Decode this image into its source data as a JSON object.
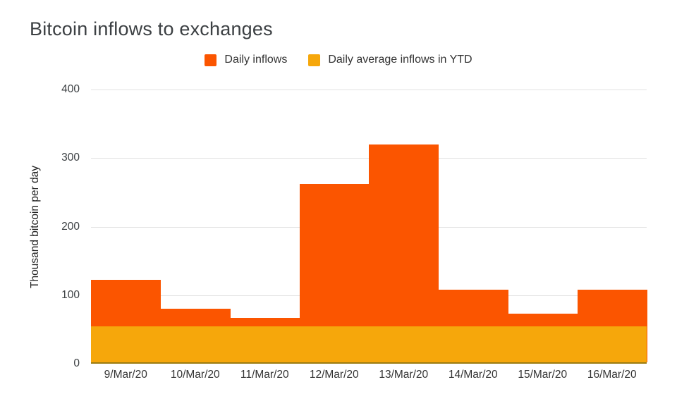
{
  "title": "Bitcoin inflows to exchanges",
  "legend": [
    {
      "label": "Daily inflows",
      "color": "#fb5500"
    },
    {
      "label": "Daily average inflows in YTD",
      "color": "#f6a70b"
    }
  ],
  "colors": {
    "daily_inflows": "#fb5500",
    "daily_average": "#f6a70b",
    "gridline": "#e2e2e2",
    "baseline": "#9c7c12",
    "title_text": "#3c4043"
  },
  "chart_data": {
    "type": "bar",
    "title": "Bitcoin inflows to exchanges",
    "categories": [
      "9/Mar/20",
      "10/Mar/20",
      "11/Mar/20",
      "12/Mar/20",
      "13/Mar/20",
      "14/Mar/20",
      "15/Mar/20",
      "16/Mar/20"
    ],
    "series": [
      {
        "name": "Daily inflows",
        "color": "#fb5500",
        "values": [
          120,
          78,
          65,
          260,
          318,
          106,
          71,
          106
        ]
      },
      {
        "name": "Daily average inflows in YTD",
        "color": "#f6a70b",
        "values": [
          52,
          52,
          52,
          52,
          52,
          52,
          52,
          52
        ]
      }
    ],
    "average_overlay_value": 52,
    "xlabel": "",
    "ylabel": "Thousand bitcoin per day",
    "ylim": [
      0,
      400
    ],
    "y_ticks": [
      0,
      100,
      200,
      300,
      400
    ],
    "grid": true,
    "legend_position": "top",
    "bar_gap": 0
  }
}
